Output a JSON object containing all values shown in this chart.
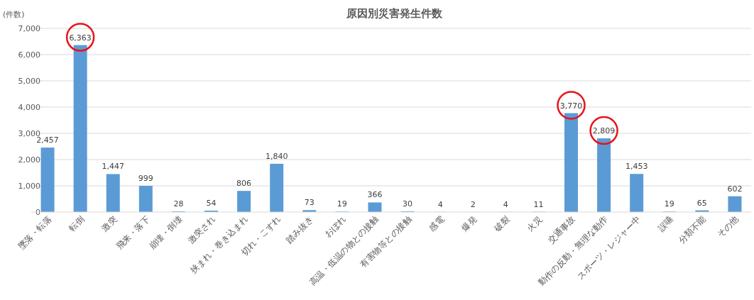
{
  "chart_data": {
    "type": "bar",
    "title": "原因別災害発生件数",
    "ylabel": "(件数)",
    "categories": [
      "墜落・転落",
      "転倒",
      "激突",
      "飛来・落下",
      "崩壊・倒壊",
      "激突され",
      "挟まれ・巻き込まれ",
      "切れ・こすれ",
      "踏み抜き",
      "おぼれ",
      "高温・低温の物との接触",
      "有害物等との接触",
      "感電",
      "爆発",
      "破裂",
      "火災",
      "交通事故",
      "動作の反動・無理な動作",
      "スポーツ・レジャー中",
      "誤嚥",
      "分類不能",
      "その他"
    ],
    "values": [
      2457,
      6363,
      1447,
      999,
      28,
      54,
      806,
      1840,
      73,
      19,
      366,
      30,
      4,
      2,
      4,
      11,
      3770,
      2809,
      1453,
      19,
      65,
      602
    ],
    "value_labels": [
      "2,457",
      "6,363",
      "1,447",
      "999",
      "28",
      "54",
      "806",
      "1,840",
      "73",
      "19",
      "366",
      "30",
      "4",
      "2",
      "4",
      "11",
      "3,770",
      "2,809",
      "1,453",
      "19",
      "65",
      "602"
    ],
    "color": "#5b9bd5",
    "ylim": [
      0,
      7000
    ],
    "yticks": [
      0,
      {
        "value": 1000,
        "label": "1,000"
      },
      {
        "value": 2000,
        "label": "2,000"
      },
      {
        "value": 3000,
        "label": "3,000"
      },
      {
        "value": 4000,
        "label": "4,000"
      },
      {
        "value": 5000,
        "label": "5,000"
      },
      {
        "value": 6000,
        "label": "6,000"
      },
      {
        "value": 7000,
        "label": "7,000"
      }
    ],
    "grid": "y"
  }
}
